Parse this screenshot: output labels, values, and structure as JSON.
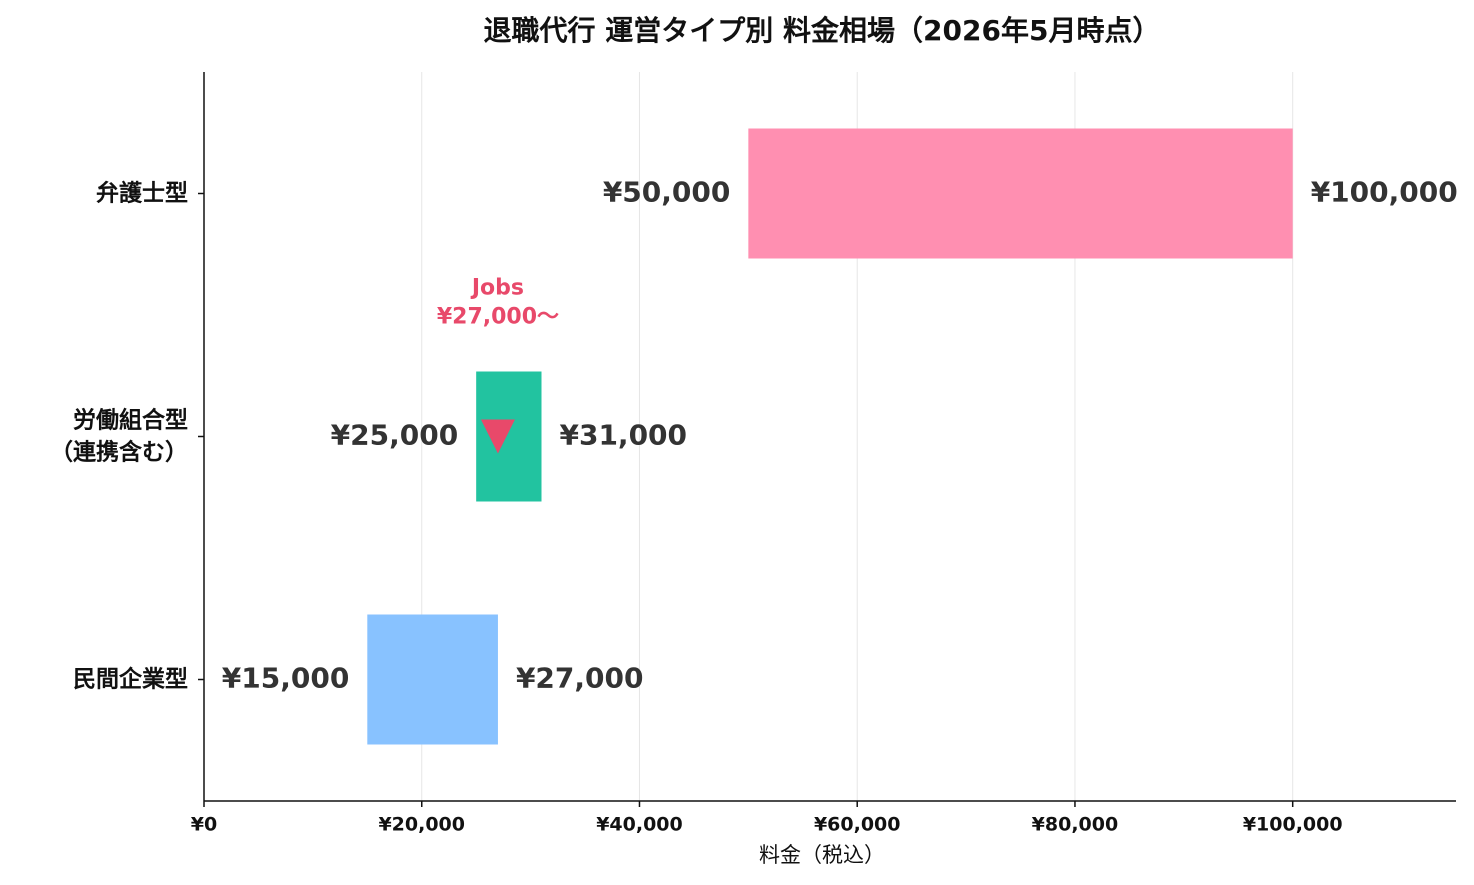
{
  "chart_data": {
    "type": "range_bar",
    "title": "退職代行 運営タイプ別 料金相場（2026年5月時点）",
    "x_label": "料金（税込）",
    "categories": [
      "弁護士型",
      "労働組合型\n（連携含む）",
      "民間企業型"
    ],
    "low": {
      "values": [
        50000,
        25000,
        15000
      ],
      "value_labels": [
        "¥50,000",
        "¥25,000",
        "¥15,000"
      ]
    },
    "high": {
      "values": [
        100000,
        31000,
        27000
      ],
      "value_labels": [
        "¥100,000",
        "¥31,000",
        "¥27,000"
      ]
    },
    "colors": [
      "#ff8fb1",
      "#22c3a0",
      "#88c2ff"
    ],
    "marker": {
      "name": "Jobs",
      "values": [
        null,
        27000,
        null
      ],
      "value_labels": [
        null,
        "¥27,000〜",
        null
      ],
      "color": "#e8496a"
    },
    "xlim": [
      0,
      115000
    ],
    "xticks": [
      {
        "value": 0,
        "label": "¥0"
      },
      {
        "value": 20000,
        "label": "¥20,000"
      },
      {
        "value": 40000,
        "label": "¥40,000"
      },
      {
        "value": 60000,
        "label": "¥60,000"
      },
      {
        "value": 80000,
        "label": "¥80,000"
      },
      {
        "value": 100000,
        "label": "¥100,000"
      }
    ],
    "grid": true
  }
}
